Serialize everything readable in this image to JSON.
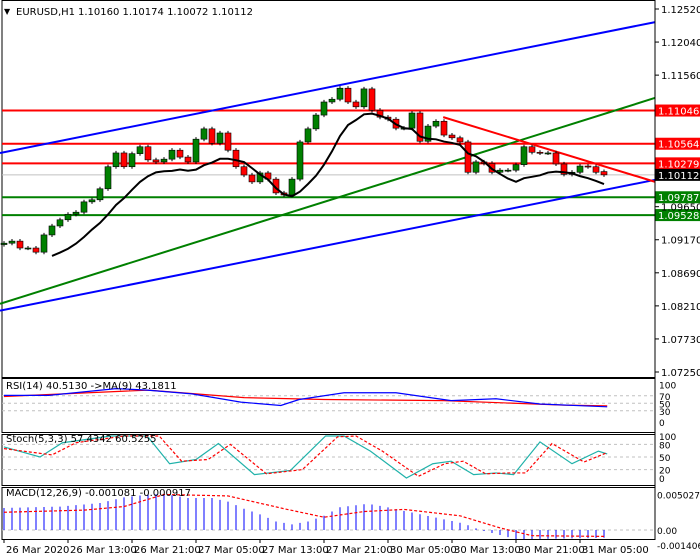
{
  "header": {
    "arrow": "▼",
    "symbol": "EURUSD,H1",
    "ohlc": "1.10160 1.10174 1.10072 1.10112"
  },
  "colors": {
    "bull": "#008000",
    "bear": "#ff0000",
    "channel": "#0000ff",
    "trend_green": "#008000",
    "trend_red": "#ff0000",
    "ma": "#000000",
    "rsi": "#0000ff",
    "rsi_ma": "#ff0000",
    "stoch_main": "#20b2aa",
    "stoch_signal": "#ff0000",
    "macd_hist": "#0000ff",
    "macd_signal": "#ff0000",
    "current_price": "#000000"
  },
  "price_axis": {
    "ticks": [
      "1.12520",
      "1.12040",
      "1.11560",
      "1.09650",
      "1.09170",
      "1.08690",
      "1.08210",
      "1.07730",
      "1.07250"
    ],
    "range": [
      1.0725,
      1.1252
    ]
  },
  "levels": [
    {
      "price": "1.11046",
      "color": "#ff0000"
    },
    {
      "price": "1.10564",
      "color": "#ff0000"
    },
    {
      "price": "1.10279",
      "color": "#ff0000"
    },
    {
      "price": "1.09787",
      "color": "#008000"
    },
    {
      "price": "1.09528",
      "color": "#008000"
    }
  ],
  "current_price": "1.10112",
  "trendlines": [
    {
      "name": "upper-channel",
      "color": "#0000ff",
      "from": {
        "bar": -0.5,
        "price": 1.1043
      },
      "to": {
        "bar": 81.4,
        "price": 1.1233
      }
    },
    {
      "name": "lower-channel",
      "color": "#0000ff",
      "from": {
        "bar": -0.5,
        "price": 1.0814
      },
      "to": {
        "bar": 81.4,
        "price": 1.1004
      }
    },
    {
      "name": "green-trend",
      "color": "#008000",
      "from": {
        "bar": -0.5,
        "price": 1.0824
      },
      "to": {
        "bar": 81.4,
        "price": 1.1123
      }
    },
    {
      "name": "red-trend",
      "color": "#ff0000",
      "from": {
        "bar": 54.9,
        "price": 1.1095
      },
      "to": {
        "bar": 81.4,
        "price": 1.1001
      }
    }
  ],
  "chart_data": {
    "type": "candlestick",
    "first_open": 1.091,
    "last_open": 1.1016,
    "closes": [
      1.0912,
      1.0915,
      1.0905,
      1.0905,
      1.0899,
      1.0924,
      1.0937,
      1.0946,
      1.0954,
      1.0957,
      1.0972,
      1.0975,
      1.0991,
      1.1023,
      1.1043,
      1.1023,
      1.1042,
      1.1052,
      1.1033,
      1.103,
      1.1034,
      1.1047,
      1.1037,
      1.103,
      1.1063,
      1.1078,
      1.1057,
      1.1072,
      1.1047,
      1.1023,
      1.1011,
      1.1001,
      1.1014,
      1.1005,
      1.0985,
      1.0982,
      1.1005,
      1.1059,
      1.1078,
      1.1098,
      1.1117,
      1.1121,
      1.1137,
      1.1117,
      1.111,
      1.1136,
      1.1105,
      1.1095,
      1.1092,
      1.1079,
      1.1079,
      1.1101,
      1.106,
      1.1082,
      1.1089,
      1.1069,
      1.1065,
      1.1059,
      1.1015,
      1.103,
      1.1028,
      1.1015,
      1.1018,
      1.1018,
      1.1026,
      1.1052,
      1.1044,
      1.1043,
      1.1043,
      1.1027,
      1.1012,
      1.1015,
      1.1024,
      1.1023,
      1.1015,
      1.10112
    ],
    "time_labels": [
      "26 Mar 2020",
      "26 Mar 13:00",
      "26 Mar 21:00",
      "27 Mar 05:00",
      "27 Mar 13:00",
      "27 Mar 21:00",
      "30 Mar 05:00",
      "30 Mar 13:00",
      "30 Mar 21:00",
      "31 Mar 05:00"
    ]
  },
  "indicators": {
    "rsi": {
      "label": "RSI(14) 40.5130  ->MA(9) 43.1811",
      "levels": [
        "100",
        "70",
        "50",
        "30",
        "0"
      ],
      "series": [
        [
          0,
          71
        ],
        [
          5.6,
          71
        ],
        [
          14,
          89
        ],
        [
          17.9,
          85
        ],
        [
          23.5,
          75
        ],
        [
          29.6,
          53
        ],
        [
          34.6,
          44
        ],
        [
          36.9,
          60
        ],
        [
          42.5,
          78
        ],
        [
          49,
          78
        ],
        [
          55.9,
          57
        ],
        [
          61.5,
          62
        ],
        [
          67,
          48
        ],
        [
          75.4,
          40.5
        ]
      ],
      "ma": [
        [
          0,
          68
        ],
        [
          18,
          85
        ],
        [
          30,
          65
        ],
        [
          40,
          60
        ],
        [
          55,
          57
        ],
        [
          70,
          45
        ],
        [
          75.4,
          43.2
        ]
      ]
    },
    "stoch": {
      "label": "Stoch(5,3,3) 57.4342 60.5255",
      "levels": [
        "100",
        "80",
        "50",
        "20",
        "0"
      ],
      "main": [
        [
          0,
          74
        ],
        [
          4.5,
          50
        ],
        [
          7.3,
          84
        ],
        [
          13.4,
          100
        ],
        [
          17.9,
          100
        ],
        [
          20.7,
          34
        ],
        [
          24,
          44
        ],
        [
          26.8,
          82
        ],
        [
          31.3,
          8
        ],
        [
          35.8,
          18
        ],
        [
          40.2,
          100
        ],
        [
          42.5,
          100
        ],
        [
          45.8,
          64
        ],
        [
          50.3,
          0
        ],
        [
          53.6,
          34
        ],
        [
          55.9,
          40
        ],
        [
          58.7,
          8
        ],
        [
          61.5,
          12
        ],
        [
          63.7,
          8
        ],
        [
          67,
          86
        ],
        [
          71,
          34
        ],
        [
          74.3,
          64
        ],
        [
          75.4,
          57.4
        ]
      ],
      "signal": [
        [
          0,
          70
        ],
        [
          6,
          55
        ],
        [
          9,
          84
        ],
        [
          15,
          100
        ],
        [
          19.4,
          100
        ],
        [
          22.2,
          40
        ],
        [
          25.5,
          44
        ],
        [
          28.3,
          80
        ],
        [
          32.8,
          10
        ],
        [
          37.3,
          20
        ],
        [
          41.7,
          98
        ],
        [
          44,
          100
        ],
        [
          47.3,
          64
        ],
        [
          51.8,
          4
        ],
        [
          55.1,
          34
        ],
        [
          57.4,
          40
        ],
        [
          60.2,
          10
        ],
        [
          63,
          12
        ],
        [
          65.2,
          12
        ],
        [
          68.5,
          82
        ],
        [
          72.5,
          38
        ],
        [
          75.4,
          60.5
        ]
      ]
    },
    "macd": {
      "label": "MACD(12,26,9) -0.001081 -0.000917",
      "levels": [
        "0.005027",
        "0.00",
        "-0.001406"
      ],
      "histogram": [
        [
          0,
          0.0031
        ],
        [
          7,
          0.0033
        ],
        [
          12,
          0.0038
        ],
        [
          15,
          0.0046
        ],
        [
          18,
          0.005
        ],
        [
          20,
          0.0051
        ],
        [
          23,
          0.0045
        ],
        [
          26,
          0.0045
        ],
        [
          28,
          0.004
        ],
        [
          30,
          0.003
        ],
        [
          32,
          0.0022
        ],
        [
          34,
          0.0012
        ],
        [
          36,
          0.0008
        ],
        [
          38,
          0.0012
        ],
        [
          40,
          0.002
        ],
        [
          42,
          0.0032
        ],
        [
          45.5,
          0.0037
        ],
        [
          47.5,
          0.0033
        ],
        [
          50,
          0.0027
        ],
        [
          52.5,
          0.0021
        ],
        [
          55,
          0.0015
        ],
        [
          57.5,
          0.0009
        ],
        [
          59.5,
          0.0
        ],
        [
          60.6,
          -0.0003
        ],
        [
          64,
          -0.0013
        ],
        [
          75,
          -0.0011
        ]
      ],
      "signal": [
        [
          0,
          0.0025
        ],
        [
          10,
          0.0028
        ],
        [
          15,
          0.0033
        ],
        [
          20,
          0.005
        ],
        [
          28,
          0.0048
        ],
        [
          35,
          0.003
        ],
        [
          40,
          0.0018
        ],
        [
          45,
          0.0026
        ],
        [
          50,
          0.0029
        ],
        [
          57,
          0.002
        ],
        [
          62,
          0.0003
        ],
        [
          66,
          -0.0008
        ],
        [
          75,
          -0.0009
        ]
      ]
    }
  }
}
